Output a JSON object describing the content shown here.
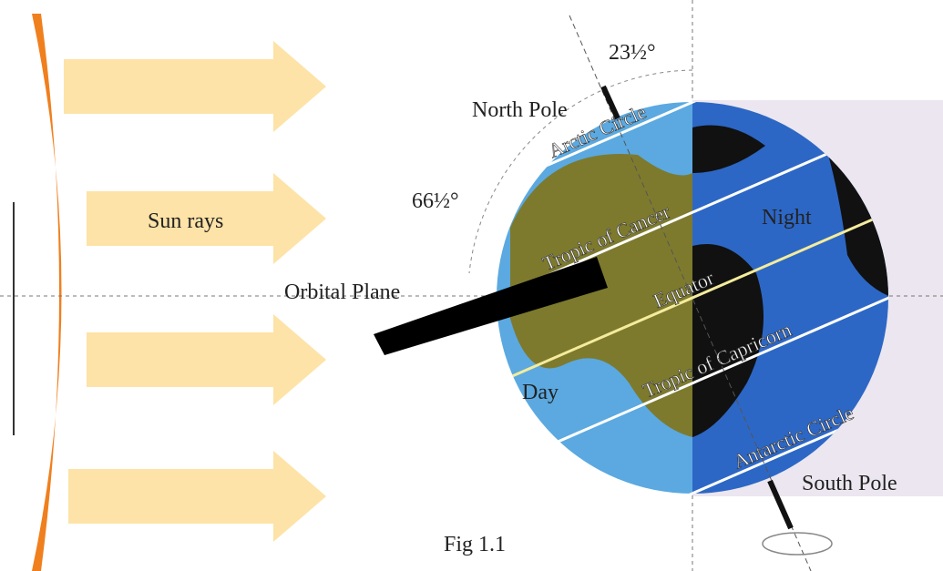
{
  "labels": {
    "axial_tilt": "23½°",
    "north_pole": "North Pole",
    "arctic_circle": "Arctic Circle",
    "orbital_angle": "66½°",
    "sun_rays": "Sun rays",
    "tropic_of_cancer": "Tropic of Cancer",
    "night": "Night",
    "orbital_plane": "Orbital Plane",
    "equator": "Equator",
    "tropic_of_capricorn": "Tropic of Capricorn",
    "day": "Day",
    "antarctic_circle": "Antarctic Circle",
    "south_pole": "South Pole"
  },
  "caption": "Fig 1.1"
}
